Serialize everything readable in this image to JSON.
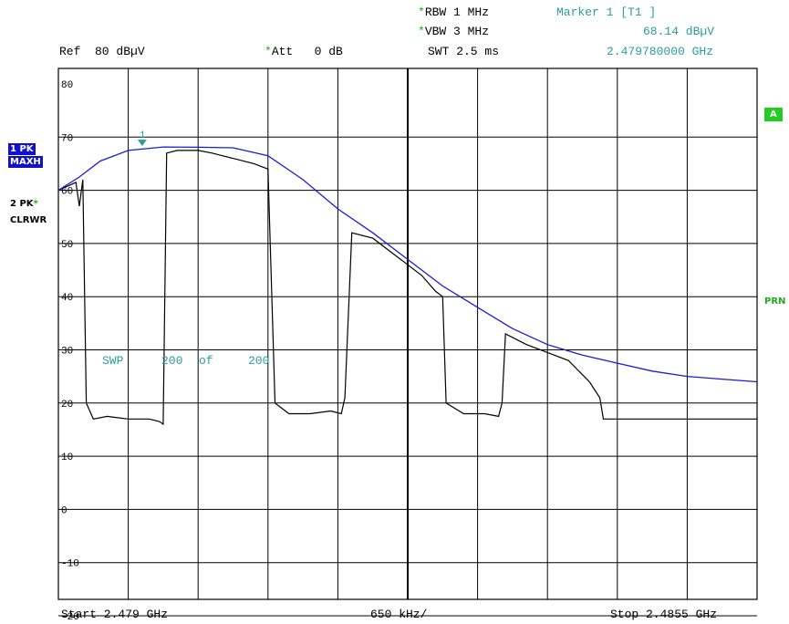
{
  "header": {
    "rbw": "RBW 1 MHz",
    "vbw": "VBW 3 MHz",
    "swt": "SWT 2.5 ms",
    "ref": "Ref  80 dBµV",
    "att": "Att   0 dB",
    "star": "*",
    "marker_title": "Marker 1 [T1 ]",
    "marker_level": "68.14 dBµV",
    "marker_freq": "2.479780000 GHz"
  },
  "left_panel": {
    "trace1_line1": "1 PK",
    "trace1_line2": "MAXH",
    "trace2_line1": "2 PK",
    "trace2_line2": "CLRWR"
  },
  "right_panel": {
    "a_label": "A",
    "prn_label": "PRN"
  },
  "footer": {
    "start": "Start 2.479 GHz",
    "span": "650 kHz/",
    "stop": "Stop 2.4855 GHz"
  },
  "sweep": {
    "prefix": "SWP",
    "current": "200",
    "of": "of",
    "total": "200"
  },
  "marker": {
    "label": "1",
    "freq_ghz": 2.47978,
    "level": 68.14
  },
  "colors": {
    "trace1": "#1c1cd0",
    "trace2": "#000000",
    "marker": "#2a9d9d",
    "grid": "#000000"
  },
  "chart_data": {
    "type": "line",
    "x_start_ghz": 2.479,
    "x_stop_ghz": 2.4855,
    "ylim": [
      -25,
      80
    ],
    "y_ticks": [
      80,
      70,
      60,
      50,
      40,
      30,
      20,
      10,
      0,
      -10,
      -20
    ],
    "x_divisions": 10,
    "grid": true,
    "series": [
      {
        "trace": 1,
        "points": [
          [
            0,
            60
          ],
          [
            0.3,
            62.5
          ],
          [
            0.6,
            65.5
          ],
          [
            1,
            67.5
          ],
          [
            1.5,
            68.14
          ],
          [
            2,
            68.1
          ],
          [
            2.5,
            68
          ],
          [
            3,
            66.5
          ],
          [
            3.5,
            62
          ],
          [
            4,
            56.5
          ],
          [
            4.5,
            52
          ],
          [
            5,
            47
          ],
          [
            5.5,
            42
          ],
          [
            6,
            38
          ],
          [
            6.5,
            34
          ],
          [
            7,
            31
          ],
          [
            7.5,
            29
          ],
          [
            8,
            27.5
          ],
          [
            8.5,
            26
          ],
          [
            9,
            25
          ],
          [
            9.5,
            24.5
          ],
          [
            10,
            24
          ]
        ]
      },
      {
        "trace": 2,
        "points": [
          [
            0,
            60
          ],
          [
            0.25,
            61.5
          ],
          [
            0.3,
            57
          ],
          [
            0.35,
            62
          ],
          [
            0.4,
            20
          ],
          [
            0.5,
            17
          ],
          [
            0.7,
            17.5
          ],
          [
            1,
            17
          ],
          [
            1.3,
            17
          ],
          [
            1.45,
            16.5
          ],
          [
            1.5,
            16
          ],
          [
            1.55,
            67
          ],
          [
            1.7,
            67.5
          ],
          [
            2,
            67.5
          ],
          [
            2.2,
            67
          ],
          [
            2.5,
            66
          ],
          [
            2.8,
            65
          ],
          [
            3,
            64
          ],
          [
            3.1,
            20
          ],
          [
            3.3,
            18
          ],
          [
            3.6,
            18
          ],
          [
            3.9,
            18.5
          ],
          [
            4.05,
            18
          ],
          [
            4.1,
            21
          ],
          [
            4.2,
            52
          ],
          [
            4.5,
            51
          ],
          [
            4.8,
            48
          ],
          [
            5,
            46
          ],
          [
            5.2,
            44
          ],
          [
            5.4,
            41
          ],
          [
            5.5,
            40
          ],
          [
            5.55,
            20
          ],
          [
            5.8,
            18
          ],
          [
            6.1,
            18
          ],
          [
            6.3,
            17.5
          ],
          [
            6.35,
            20
          ],
          [
            6.4,
            33
          ],
          [
            6.7,
            31
          ],
          [
            7,
            29.5
          ],
          [
            7.3,
            28
          ],
          [
            7.6,
            24
          ],
          [
            7.75,
            21
          ],
          [
            7.8,
            17
          ],
          [
            8.2,
            17
          ],
          [
            8.6,
            17
          ],
          [
            9,
            17
          ],
          [
            9.4,
            17
          ],
          [
            9.8,
            17
          ],
          [
            10,
            17
          ]
        ]
      }
    ]
  }
}
